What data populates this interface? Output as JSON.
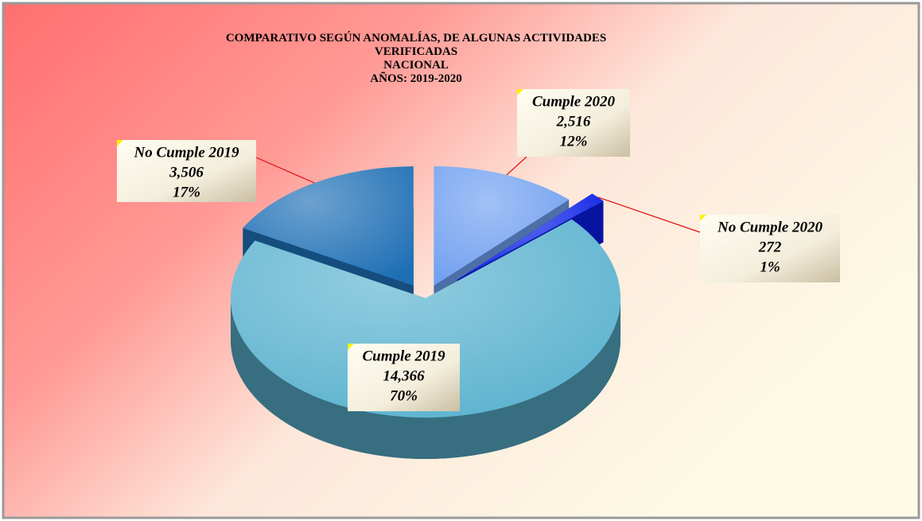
{
  "chart_data": {
    "type": "pie",
    "title": [
      "COMPARATIVO SEGÚN ANOMALÍAS, DE ALGUNAS ACTIVIDADES",
      "VERIFICADAS",
      "NACIONAL",
      "AÑOS: 2019-2020"
    ],
    "categories": [
      "Cumple 2020",
      "No Cumple 2020",
      "Cumple 2019",
      "No Cumple 2019"
    ],
    "values": [
      2516,
      272,
      14366,
      3506
    ],
    "value_labels": [
      "2,516",
      "272",
      "14,366",
      "3,506"
    ],
    "percentages": [
      12,
      1,
      70,
      17
    ],
    "percentage_labels": [
      "12%",
      "1%",
      "70%",
      "17%"
    ],
    "colors": [
      "#6f9ff0",
      "#0a1ee6",
      "#5ab2cf",
      "#1e6fb5"
    ]
  }
}
